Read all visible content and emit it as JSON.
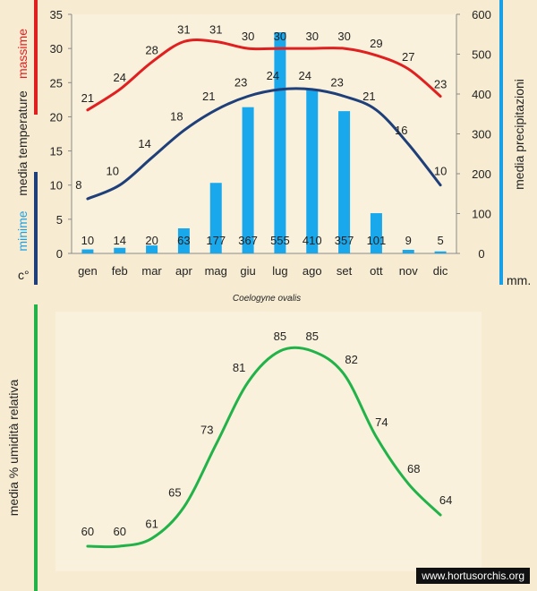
{
  "chart_data": [
    {
      "type": "bar+line",
      "caption": "Coelogyne ovalis",
      "categories": [
        "gen",
        "feb",
        "mar",
        "apr",
        "mag",
        "giu",
        "lug",
        "ago",
        "set",
        "ott",
        "nov",
        "dic"
      ],
      "left_axis": {
        "title_parts": [
          {
            "text": "massime",
            "color": "#e02020"
          },
          {
            "text": "media  temperature",
            "color": "#222222"
          },
          {
            "text": "minime",
            "color": "#1aa0e6"
          }
        ],
        "unit": "c°",
        "ticks": [
          "0",
          "5",
          "10",
          "15",
          "20",
          "25",
          "30",
          "35"
        ],
        "range": [
          0,
          35
        ]
      },
      "right_axis": {
        "title": "media  precipitazioni",
        "unit": "mm.",
        "ticks": [
          "0",
          "100",
          "200",
          "300",
          "400",
          "500",
          "600"
        ],
        "range": [
          0,
          600
        ]
      },
      "series": [
        {
          "role": "max-temperature",
          "type": "line",
          "color": "#e02020",
          "values": [
            21,
            24,
            28,
            31,
            31,
            30,
            30,
            30,
            30,
            29,
            27,
            23
          ]
        },
        {
          "role": "min-temperature",
          "type": "line",
          "color": "#1f3f7a",
          "values": [
            8,
            10,
            14,
            18,
            21,
            23,
            24,
            24,
            23,
            21,
            16,
            10
          ]
        },
        {
          "role": "precipitation",
          "type": "bar",
          "color": "#1aa8ec",
          "values": [
            10,
            14,
            20,
            63,
            177,
            367,
            555,
            410,
            357,
            101,
            9,
            5
          ]
        }
      ]
    },
    {
      "type": "line",
      "y_axis_title": "media % umidità relativa",
      "series": [
        {
          "role": "humidity",
          "color": "#22b24a",
          "values": [
            60,
            60,
            61,
            65,
            73,
            81,
            85,
            85,
            82,
            74,
            68,
            64
          ]
        }
      ]
    }
  ],
  "watermark": "www.hortusorchis.org",
  "colors": {
    "background": "#f7ecd2",
    "red_axis_bar": "#e02020",
    "navy_axis_bar": "#1f3f7a",
    "blue_axis_bar": "#1aa0e6",
    "green_axis_bar": "#22b24a"
  }
}
